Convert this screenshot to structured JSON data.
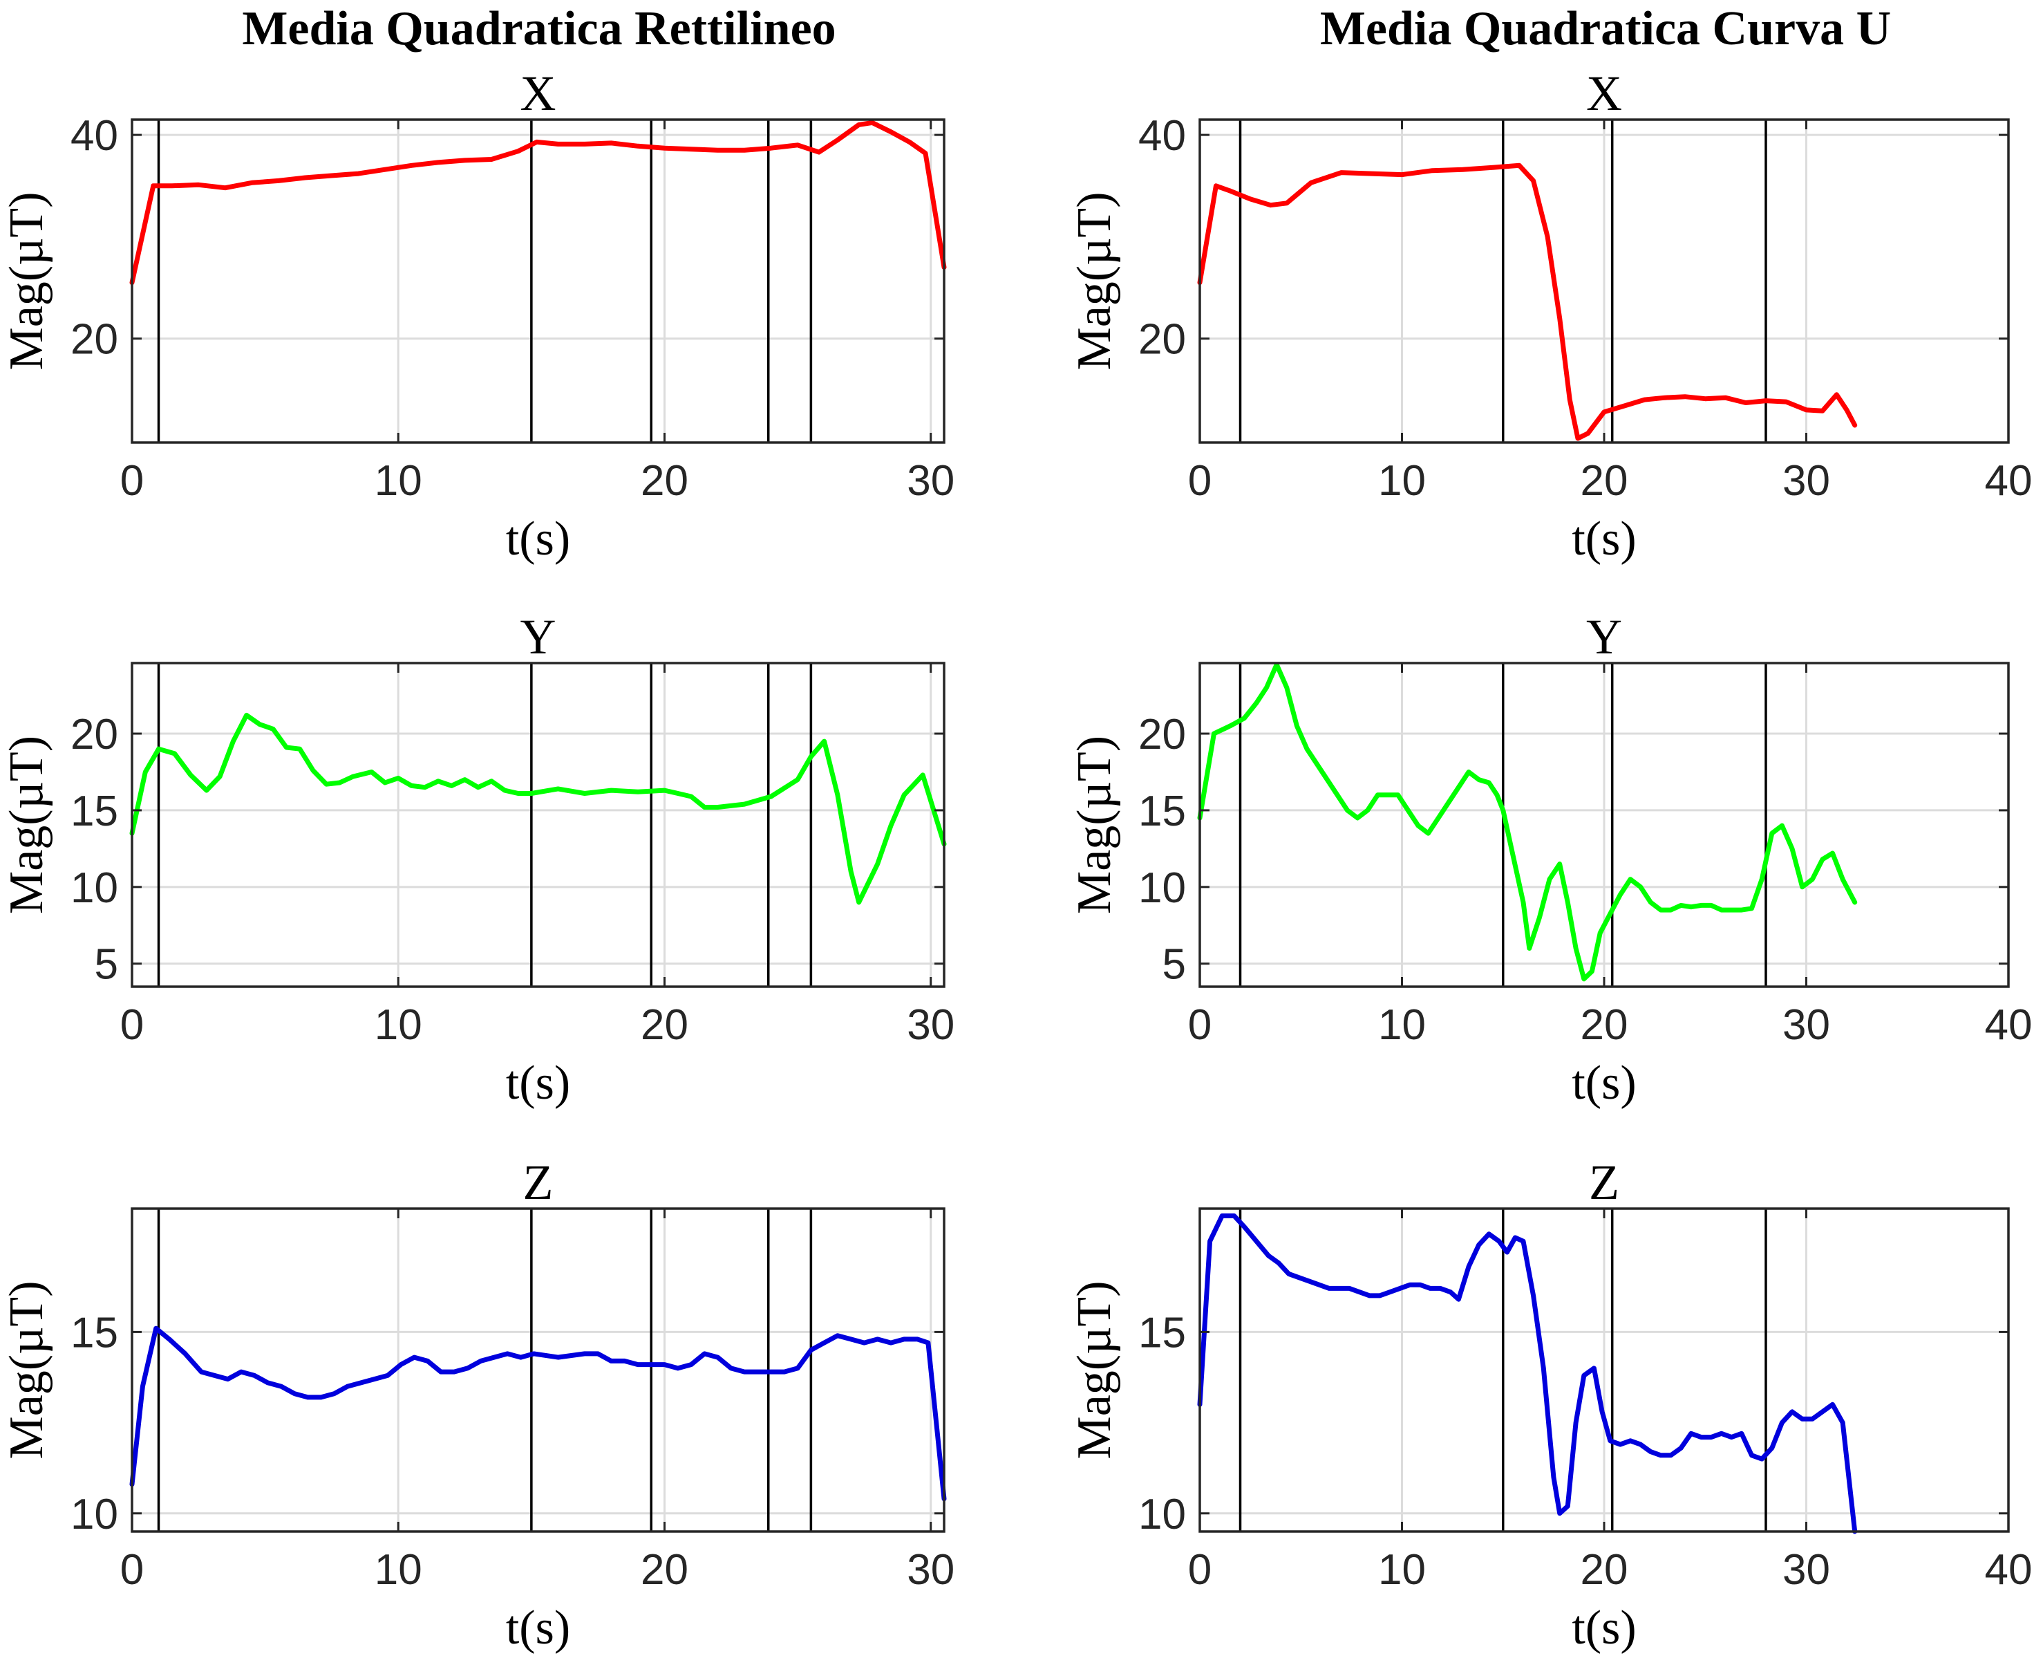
{
  "column_titles": [
    "Media Quadratica Rettilineo",
    "Media Quadratica Curva U"
  ],
  "chart_data": [
    {
      "type": "line",
      "title": "X",
      "xlabel": "t(s)",
      "ylabel": "Mag(µT)",
      "xlim": [
        0,
        30.5
      ],
      "ylim": [
        9.8,
        41.5
      ],
      "xticks": [
        0,
        10,
        20,
        30
      ],
      "yticks": [
        20,
        40
      ],
      "grid": true,
      "color": "#ff0000",
      "vlines": [
        1,
        15,
        19.5,
        23.9,
        25.5
      ],
      "series": [
        {
          "x": [
            0,
            0.8,
            1.5,
            2.5,
            3.5,
            4.5,
            5.5,
            6.5,
            7.5,
            8.5,
            9.5,
            10.5,
            11.5,
            12.5,
            13.5,
            14.5,
            15.2,
            16,
            17,
            18,
            19,
            20,
            21,
            22,
            23,
            24,
            25,
            25.8,
            26.5,
            27.3,
            27.8,
            28.5,
            29.2,
            29.8,
            30.5
          ],
          "y": [
            25.5,
            35,
            35,
            35.1,
            34.8,
            35.3,
            35.5,
            35.8,
            36,
            36.2,
            36.6,
            37,
            37.3,
            37.5,
            37.6,
            38.4,
            39.3,
            39.1,
            39.1,
            39.2,
            38.9,
            38.7,
            38.6,
            38.5,
            38.5,
            38.7,
            39,
            38.3,
            39.5,
            41,
            41.2,
            40.3,
            39.3,
            38.2,
            27
          ]
        }
      ]
    },
    {
      "type": "line",
      "title": "X",
      "xlabel": "t(s)",
      "ylabel": "Mag(µT)",
      "xlim": [
        0,
        40
      ],
      "ylim": [
        9.8,
        41.5
      ],
      "xticks": [
        0,
        10,
        20,
        30,
        40
      ],
      "yticks": [
        20,
        40
      ],
      "grid": true,
      "color": "#ff0000",
      "vlines": [
        2,
        15,
        20.4,
        28
      ],
      "series": [
        {
          "x": [
            0,
            0.8,
            1.5,
            2.5,
            3.5,
            4.3,
            5.5,
            7,
            8.5,
            10,
            11.5,
            13,
            14.5,
            15.8,
            16.5,
            17.2,
            17.8,
            18.3,
            18.7,
            19.2,
            20,
            21,
            22,
            23,
            24,
            25,
            26,
            27,
            28,
            29,
            30,
            30.8,
            31.5,
            32,
            32.4
          ],
          "y": [
            25.5,
            35,
            34.5,
            33.7,
            33.1,
            33.3,
            35.3,
            36.3,
            36.2,
            36.1,
            36.5,
            36.6,
            36.8,
            37,
            35.5,
            30,
            22,
            14,
            10.2,
            10.7,
            12.8,
            13.4,
            14,
            14.2,
            14.3,
            14.1,
            14.2,
            13.7,
            13.9,
            13.8,
            13,
            12.9,
            14.5,
            13,
            11.5
          ]
        }
      ]
    },
    {
      "type": "line",
      "title": "Y",
      "xlabel": "t(s)",
      "ylabel": "Mag(µT)",
      "xlim": [
        0,
        30.5
      ],
      "ylim": [
        3.5,
        24.6
      ],
      "xticks": [
        0,
        10,
        20,
        30
      ],
      "yticks": [
        5,
        10,
        15,
        20
      ],
      "grid": true,
      "color": "#00ff00",
      "vlines": [
        1,
        15,
        19.5,
        23.9,
        25.5
      ],
      "series": [
        {
          "x": [
            0,
            0.5,
            1,
            1.6,
            2.2,
            2.8,
            3.3,
            3.8,
            4.3,
            4.8,
            5.3,
            5.8,
            6.3,
            6.8,
            7.3,
            7.8,
            8.3,
            9,
            9.5,
            10,
            10.5,
            11,
            11.5,
            12,
            12.5,
            13,
            13.5,
            14,
            14.5,
            15,
            16,
            17,
            18,
            19,
            20,
            20.5,
            21,
            21.5,
            22,
            23,
            24,
            25,
            25.5,
            26,
            26.5,
            27,
            27.3,
            28,
            28.5,
            29,
            29.7,
            30.5
          ],
          "y": [
            13.5,
            17.5,
            19,
            18.7,
            17.3,
            16.3,
            17.2,
            19.5,
            21.2,
            20.6,
            20.3,
            19.1,
            19,
            17.6,
            16.7,
            16.8,
            17.2,
            17.5,
            16.8,
            17.1,
            16.6,
            16.5,
            16.9,
            16.6,
            17,
            16.5,
            16.9,
            16.3,
            16.1,
            16.1,
            16.4,
            16.1,
            16.3,
            16.2,
            16.3,
            16.1,
            15.9,
            15.2,
            15.2,
            15.4,
            15.9,
            17,
            18.5,
            19.5,
            16,
            11,
            9,
            11.5,
            14,
            16,
            17.3,
            12.8
          ]
        }
      ]
    },
    {
      "type": "line",
      "title": "Y",
      "xlabel": "t(s)",
      "ylabel": "Mag(µT)",
      "xlim": [
        0,
        40
      ],
      "ylim": [
        3.5,
        24.6
      ],
      "xticks": [
        0,
        10,
        20,
        30,
        40
      ],
      "yticks": [
        5,
        10,
        15,
        20
      ],
      "grid": true,
      "color": "#00ff00",
      "vlines": [
        2,
        15,
        20.4,
        28
      ],
      "series": [
        {
          "x": [
            0,
            0.7,
            1.5,
            2.2,
            2.8,
            3.3,
            3.8,
            4.3,
            4.8,
            5.3,
            5.8,
            6.3,
            6.8,
            7.3,
            7.8,
            8.3,
            8.8,
            9.3,
            9.8,
            10.3,
            10.8,
            11.3,
            11.8,
            12.3,
            12.8,
            13.3,
            13.8,
            14.3,
            14.7,
            15,
            15.5,
            16,
            16.3,
            16.8,
            17.3,
            17.8,
            18.2,
            18.6,
            19,
            19.4,
            19.8,
            20.2,
            20.8,
            21.3,
            21.8,
            22.3,
            22.8,
            23.3,
            23.8,
            24.3,
            24.8,
            25.3,
            25.8,
            26.3,
            26.8,
            27.3,
            27.8,
            28.3,
            28.8,
            29.3,
            29.8,
            30.3,
            30.8,
            31.3,
            31.8,
            32.4
          ],
          "y": [
            14.5,
            20,
            20.5,
            21,
            22,
            23,
            24.5,
            23,
            20.5,
            19,
            18,
            17,
            16,
            15,
            14.5,
            15,
            16,
            16,
            16,
            15,
            14,
            13.5,
            14.5,
            15.5,
            16.5,
            17.5,
            17,
            16.8,
            16,
            15,
            12,
            9,
            6,
            8,
            10.5,
            11.5,
            9,
            6,
            4,
            4.5,
            7,
            8,
            9.5,
            10.5,
            10,
            9,
            8.5,
            8.5,
            8.8,
            8.7,
            8.8,
            8.8,
            8.5,
            8.5,
            8.5,
            8.6,
            10.5,
            13.5,
            14,
            12.5,
            10,
            10.5,
            11.8,
            12.2,
            10.5,
            9
          ]
        }
      ]
    },
    {
      "type": "line",
      "title": "Z",
      "xlabel": "t(s)",
      "ylabel": "Mag(µT)",
      "xlim": [
        0,
        30.5
      ],
      "ylim": [
        9.5,
        18.4
      ],
      "xticks": [
        0,
        10,
        20,
        30
      ],
      "yticks": [
        10,
        15
      ],
      "grid": true,
      "color": "#0000dd",
      "vlines": [
        1,
        15,
        19.5,
        23.9,
        25.5
      ],
      "series": [
        {
          "x": [
            0,
            0.4,
            0.9,
            1.4,
            2,
            2.6,
            3.1,
            3.6,
            4.1,
            4.6,
            5.1,
            5.6,
            6.1,
            6.6,
            7.1,
            7.6,
            8.1,
            8.6,
            9.1,
            9.6,
            10.1,
            10.6,
            11.1,
            11.6,
            12.1,
            12.6,
            13.1,
            13.6,
            14.1,
            14.6,
            15.1,
            16,
            17,
            17.5,
            18,
            18.5,
            19,
            19.5,
            20,
            20.5,
            21,
            21.5,
            22,
            22.5,
            23,
            23.5,
            24,
            24.5,
            25,
            25.5,
            26,
            26.5,
            27,
            27.5,
            28,
            28.5,
            29,
            29.5,
            29.9,
            30.5
          ],
          "y": [
            10.8,
            13.5,
            15.1,
            14.8,
            14.4,
            13.9,
            13.8,
            13.7,
            13.9,
            13.8,
            13.6,
            13.5,
            13.3,
            13.2,
            13.2,
            13.3,
            13.5,
            13.6,
            13.7,
            13.8,
            14.1,
            14.3,
            14.2,
            13.9,
            13.9,
            14,
            14.2,
            14.3,
            14.4,
            14.3,
            14.4,
            14.3,
            14.4,
            14.4,
            14.2,
            14.2,
            14.1,
            14.1,
            14.1,
            14,
            14.1,
            14.4,
            14.3,
            14,
            13.9,
            13.9,
            13.9,
            13.9,
            14,
            14.5,
            14.7,
            14.9,
            14.8,
            14.7,
            14.8,
            14.7,
            14.8,
            14.8,
            14.7,
            10.4
          ]
        }
      ]
    },
    {
      "type": "line",
      "title": "Z",
      "xlabel": "t(s)",
      "ylabel": "Mag(µT)",
      "xlim": [
        0,
        40
      ],
      "ylim": [
        9.5,
        18.4
      ],
      "xticks": [
        0,
        10,
        20,
        30,
        40
      ],
      "yticks": [
        10,
        15
      ],
      "grid": true,
      "color": "#0000dd",
      "vlines": [
        2,
        15,
        20.4,
        28
      ],
      "series": [
        {
          "x": [
            0,
            0.5,
            1.1,
            1.7,
            2.2,
            2.8,
            3.4,
            3.9,
            4.4,
            4.9,
            5.4,
            5.9,
            6.4,
            6.9,
            7.4,
            7.9,
            8.4,
            8.9,
            9.4,
            9.9,
            10.4,
            10.9,
            11.4,
            11.9,
            12.4,
            12.8,
            13.3,
            13.8,
            14.3,
            14.8,
            15.2,
            15.6,
            16,
            16.5,
            17,
            17.5,
            17.8,
            18.2,
            18.6,
            19,
            19.5,
            19.9,
            20.3,
            20.8,
            21.3,
            21.8,
            22.3,
            22.8,
            23.3,
            23.8,
            24.3,
            24.8,
            25.3,
            25.8,
            26.3,
            26.8,
            27.3,
            27.8,
            28.3,
            28.8,
            29.3,
            29.8,
            30.3,
            30.8,
            31.3,
            31.8,
            32.4
          ],
          "y": [
            13,
            17.5,
            18.2,
            18.2,
            17.9,
            17.5,
            17.1,
            16.9,
            16.6,
            16.5,
            16.4,
            16.3,
            16.2,
            16.2,
            16.2,
            16.1,
            16,
            16,
            16.1,
            16.2,
            16.3,
            16.3,
            16.2,
            16.2,
            16.1,
            15.9,
            16.8,
            17.4,
            17.7,
            17.5,
            17.2,
            17.6,
            17.5,
            16,
            14,
            11,
            10,
            10.2,
            12.5,
            13.8,
            14,
            12.8,
            12,
            11.9,
            12,
            11.9,
            11.7,
            11.6,
            11.6,
            11.8,
            12.2,
            12.1,
            12.1,
            12.2,
            12.1,
            12.2,
            11.6,
            11.5,
            11.8,
            12.5,
            12.8,
            12.6,
            12.6,
            12.8,
            13,
            12.5,
            9.5
          ]
        }
      ]
    }
  ]
}
